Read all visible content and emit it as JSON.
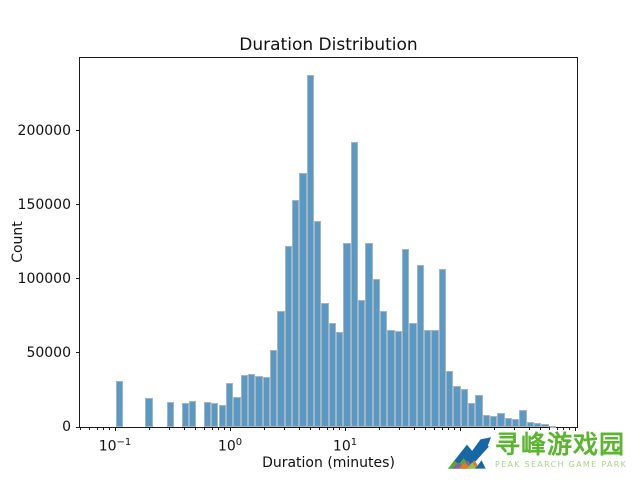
{
  "chart_data": {
    "type": "bar",
    "subtype": "histogram-log-x",
    "title": "Duration Distribution",
    "xlabel": "Duration (minutes)",
    "ylabel": "Count",
    "x_scale": "log",
    "xlim": [
      0.0496,
      1040
    ],
    "ylim": [
      0,
      249000
    ],
    "grid": "off",
    "legend": "none",
    "bar_color": "#5799c7",
    "bar_edge_color": "#a9b3b9",
    "axis_color": "#1a1a1a",
    "y_ticks": [
      {
        "value": 0,
        "label": "0"
      },
      {
        "value": 50000,
        "label": "50000"
      },
      {
        "value": 100000,
        "label": "100000"
      },
      {
        "value": 150000,
        "label": "150000"
      },
      {
        "value": 200000,
        "label": "200000"
      }
    ],
    "x_major_ticks": [
      {
        "value": 0.1,
        "base": "10",
        "exp": "−1"
      },
      {
        "value": 1,
        "base": "10",
        "exp": "0"
      },
      {
        "value": 10,
        "base": "10",
        "exp": "1"
      },
      {
        "value": 100,
        "base": "",
        "exp": ""
      },
      {
        "value": 1000,
        "base": "",
        "exp": ""
      }
    ],
    "x_minor_ticks": [
      0.05,
      0.06,
      0.07,
      0.08,
      0.09,
      0.2,
      0.3,
      0.4,
      0.5,
      0.6,
      0.7,
      0.8,
      0.9,
      2,
      3,
      4,
      5,
      6,
      7,
      8,
      9,
      20,
      30,
      40,
      50,
      60,
      70,
      80,
      90,
      200,
      300,
      400,
      500,
      600,
      700,
      800,
      900
    ],
    "bin_edges_minutes": [
      0.102,
      0.118,
      0.136,
      0.158,
      0.183,
      0.212,
      0.245,
      0.284,
      0.329,
      0.381,
      0.442,
      0.511,
      0.592,
      0.686,
      0.794,
      0.92,
      1.066,
      1.234,
      1.43,
      1.656,
      1.918,
      2.221,
      2.573,
      2.98,
      3.451,
      3.997,
      4.63,
      5.363,
      6.211,
      7.193,
      8.332,
      9.65,
      11.18,
      12.95,
      14.99,
      17.37,
      20.11,
      23.29,
      26.98,
      31.25,
      36.19,
      41.92,
      48.55,
      56.23,
      65.13,
      75.43,
      87.37,
      101.2,
      117.2,
      135.7,
      157.2,
      182.1,
      210.9,
      244.3,
      282.9,
      327.7,
      379.5,
      439.6,
      509.1,
      589.7,
      683.0
    ],
    "counts": [
      31000,
      0,
      0,
      0,
      19500,
      0,
      0,
      17000,
      0,
      16200,
      17800,
      0,
      17000,
      16000,
      15000,
      30000,
      20500,
      35000,
      36000,
      34500,
      34000,
      52000,
      78000,
      122000,
      153000,
      171500,
      237500,
      139000,
      84000,
      70000,
      64000,
      124000,
      192000,
      86000,
      124500,
      100000,
      78000,
      65500,
      65000,
      120000,
      70500,
      109500,
      65500,
      65500,
      106500,
      37500,
      27700,
      25500,
      16000,
      21600,
      8100,
      7400,
      9200,
      6300,
      5200,
      11500,
      3600,
      2500,
      2000,
      900
    ]
  },
  "watermark": {
    "brand_cn": "寻峰游戏园",
    "brand_en": "PEAK SEARCH GAME PARK",
    "colors": {
      "text_green": "#5cb531",
      "sub_green": "#a5d587",
      "icon_blue": "#1766a6",
      "icon_green": "#55aa2b",
      "icon_light_green": "#8bc541",
      "icon_purple": "#8f5bb0",
      "icon_orange": "#e07b28"
    }
  }
}
